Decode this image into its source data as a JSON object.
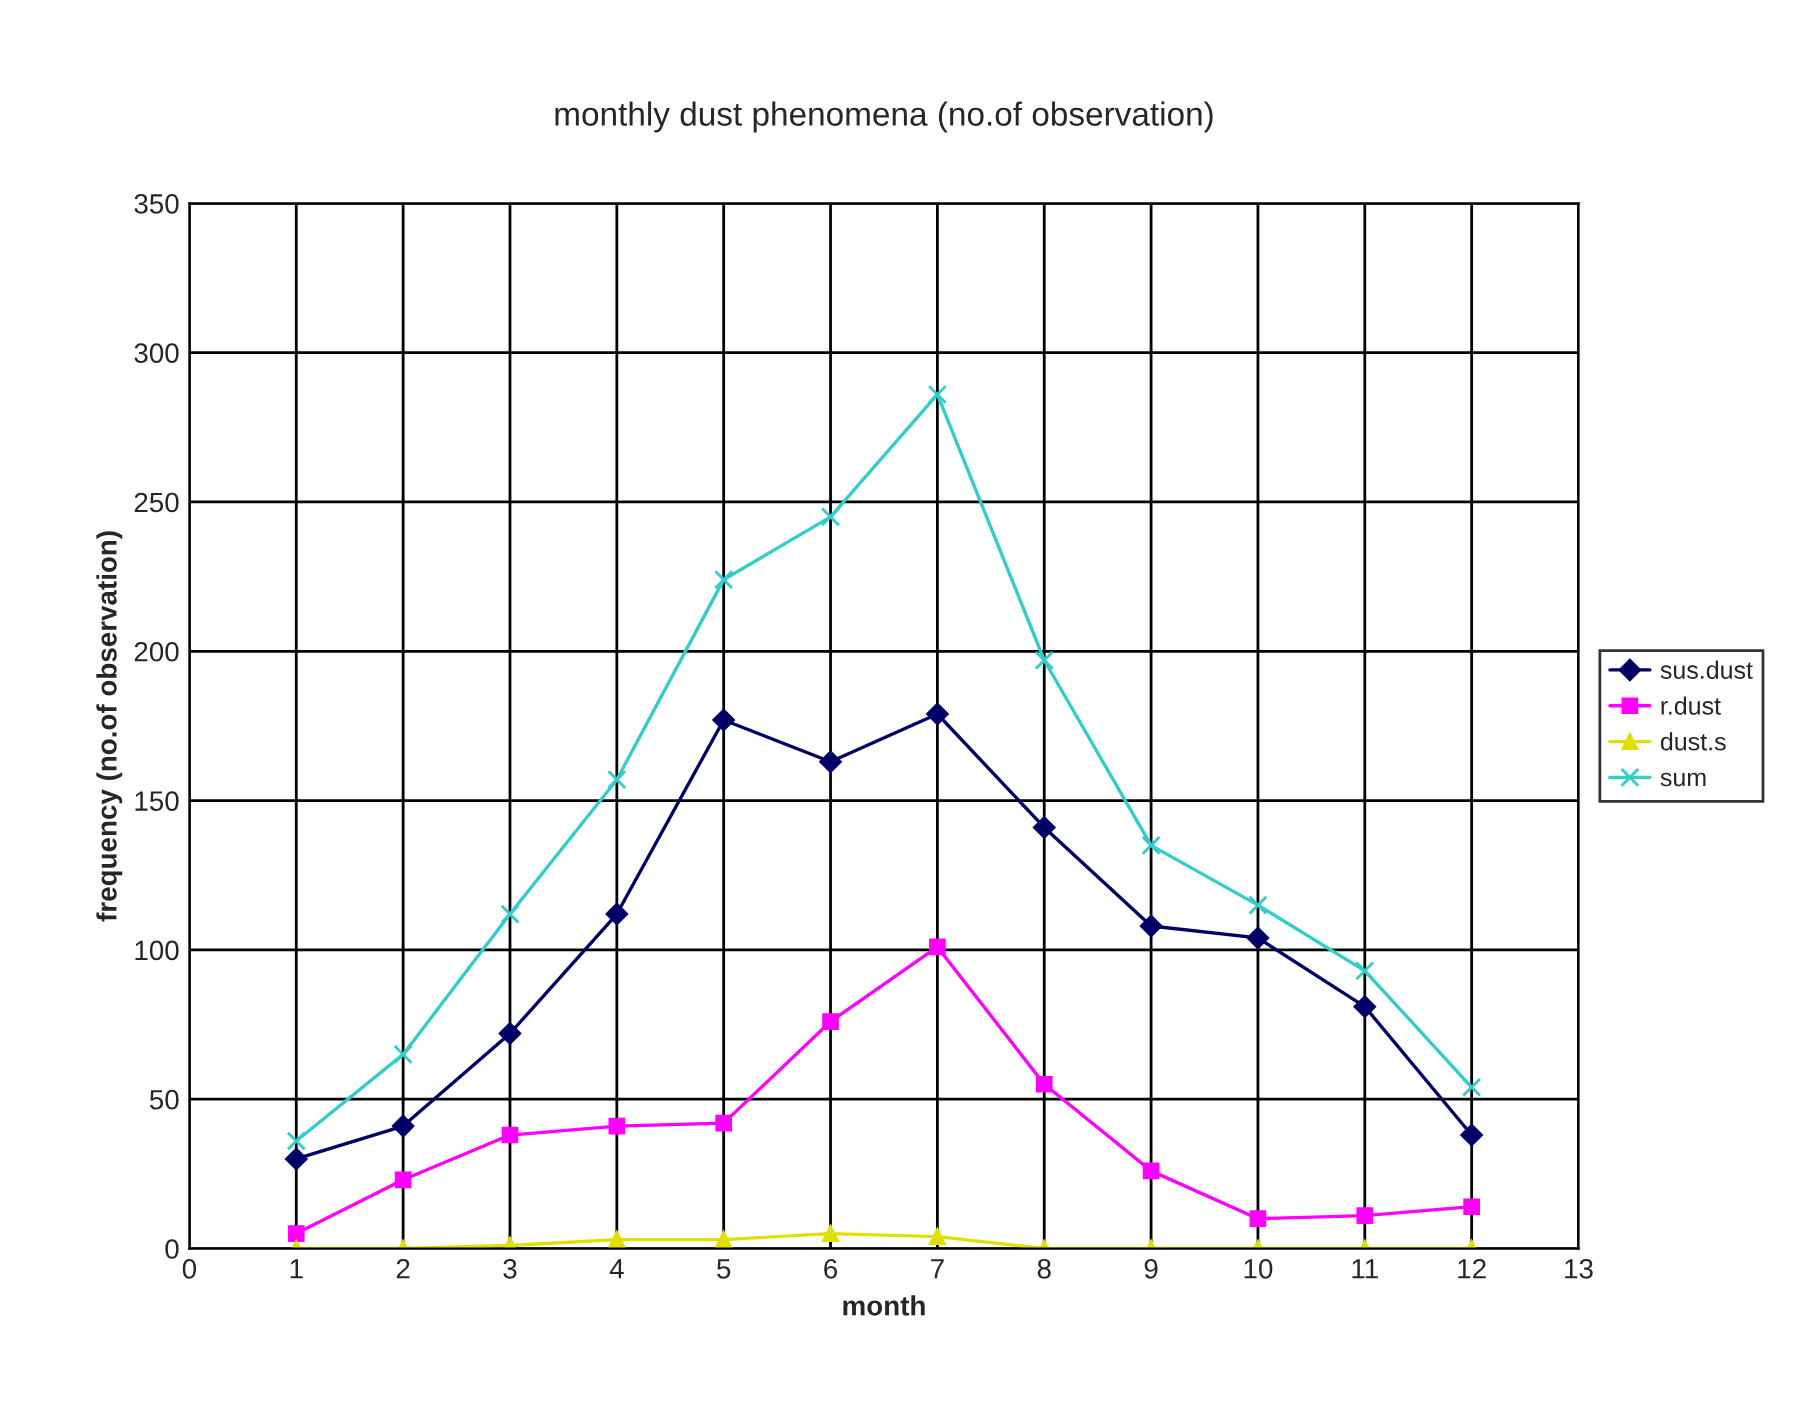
{
  "chart_data": {
    "type": "line",
    "title": "monthly dust phenomena (no.of observation)",
    "xlabel": "month",
    "ylabel": "frequency (no.of observation)",
    "x": [
      1,
      2,
      3,
      4,
      5,
      6,
      7,
      8,
      9,
      10,
      11,
      12
    ],
    "series": [
      {
        "name": "sus.dust",
        "color": "#000066",
        "marker": "diamond",
        "values": [
          30,
          41,
          72,
          112,
          177,
          163,
          179,
          141,
          108,
          104,
          81,
          38
        ]
      },
      {
        "name": "r.dust",
        "color": "#ff00ff",
        "marker": "square",
        "values": [
          5,
          23,
          38,
          41,
          42,
          76,
          101,
          55,
          26,
          10,
          11,
          14
        ]
      },
      {
        "name": "dust.s",
        "color": "#e0e000",
        "marker": "triangle",
        "values": [
          0,
          0,
          1,
          3,
          3,
          5,
          4,
          0,
          0,
          0,
          0,
          0
        ]
      },
      {
        "name": "sum",
        "color": "#33cccc",
        "marker": "cross",
        "values": [
          36,
          65,
          112,
          157,
          224,
          245,
          286,
          197,
          135,
          115,
          93,
          54
        ]
      }
    ],
    "xlim": [
      0,
      13
    ],
    "xticks": [
      0,
      1,
      2,
      3,
      4,
      5,
      6,
      7,
      8,
      9,
      10,
      11,
      12,
      13
    ],
    "ylim": [
      0,
      350
    ],
    "yticks": [
      0,
      50,
      100,
      150,
      200,
      250,
      300,
      350
    ],
    "grid": true,
    "legend": "right",
    "line_style": "solid"
  }
}
